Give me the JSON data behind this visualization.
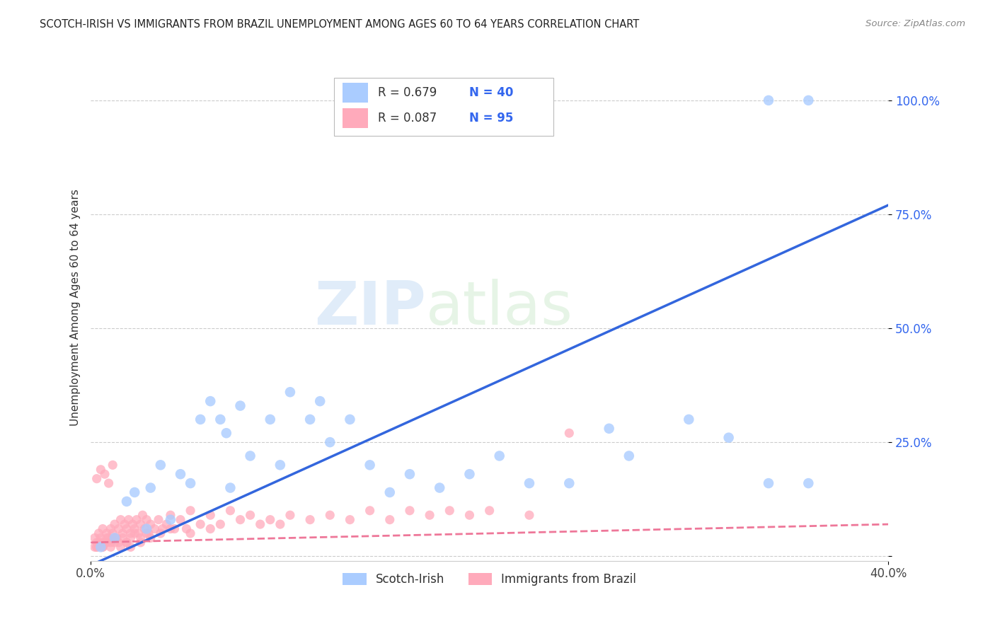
{
  "title": "SCOTCH-IRISH VS IMMIGRANTS FROM BRAZIL UNEMPLOYMENT AMONG AGES 60 TO 64 YEARS CORRELATION CHART",
  "source": "Source: ZipAtlas.com",
  "ylabel": "Unemployment Among Ages 60 to 64 years",
  "watermark_zip": "ZIP",
  "watermark_atlas": "atlas",
  "series1_name": "Scotch-Irish",
  "series1_R": "0.679",
  "series1_N": "40",
  "series1_color": "#aaccff",
  "series1_line_color": "#3366dd",
  "series2_name": "Immigrants from Brazil",
  "series2_R": "0.087",
  "series2_N": "95",
  "series2_color": "#ffaabb",
  "series2_line_color": "#ee7799",
  "R_color": "#333333",
  "N_color": "#3366ee",
  "ytick_color": "#3366ee",
  "grid_color": "#cccccc",
  "xlim": [
    0.0,
    0.4
  ],
  "ylim": [
    -0.01,
    1.1
  ],
  "si_line_x0": 0.0,
  "si_line_y0": -0.02,
  "si_line_x1": 0.4,
  "si_line_y1": 0.77,
  "br_line_x0": 0.0,
  "br_line_y0": 0.03,
  "br_line_x1": 0.4,
  "br_line_y1": 0.07,
  "scotch_irish_x": [
    0.005,
    0.012,
    0.018,
    0.022,
    0.028,
    0.03,
    0.035,
    0.04,
    0.045,
    0.05,
    0.055,
    0.06,
    0.065,
    0.068,
    0.07,
    0.075,
    0.08,
    0.09,
    0.095,
    0.1,
    0.11,
    0.115,
    0.12,
    0.13,
    0.14,
    0.15,
    0.16,
    0.175,
    0.19,
    0.205,
    0.22,
    0.24,
    0.26,
    0.27,
    0.3,
    0.32,
    0.34,
    0.36,
    0.34,
    0.36
  ],
  "scotch_irish_y": [
    0.02,
    0.04,
    0.12,
    0.14,
    0.06,
    0.15,
    0.2,
    0.08,
    0.18,
    0.16,
    0.3,
    0.34,
    0.3,
    0.27,
    0.15,
    0.33,
    0.22,
    0.3,
    0.2,
    0.36,
    0.3,
    0.34,
    0.25,
    0.3,
    0.2,
    0.14,
    0.18,
    0.15,
    0.18,
    0.22,
    0.16,
    0.16,
    0.28,
    0.22,
    0.3,
    0.26,
    0.16,
    0.16,
    1.0,
    1.0
  ],
  "brazil_x": [
    0.002,
    0.003,
    0.004,
    0.005,
    0.006,
    0.007,
    0.008,
    0.009,
    0.01,
    0.011,
    0.012,
    0.013,
    0.014,
    0.015,
    0.016,
    0.017,
    0.018,
    0.019,
    0.02,
    0.021,
    0.022,
    0.023,
    0.024,
    0.025,
    0.026,
    0.027,
    0.028,
    0.029,
    0.03,
    0.032,
    0.034,
    0.036,
    0.038,
    0.04,
    0.042,
    0.045,
    0.048,
    0.05,
    0.055,
    0.06,
    0.065,
    0.07,
    0.075,
    0.08,
    0.085,
    0.09,
    0.095,
    0.1,
    0.11,
    0.12,
    0.13,
    0.14,
    0.15,
    0.16,
    0.17,
    0.18,
    0.19,
    0.2,
    0.22,
    0.24,
    0.002,
    0.003,
    0.005,
    0.006,
    0.007,
    0.008,
    0.01,
    0.012,
    0.014,
    0.016,
    0.018,
    0.02,
    0.022,
    0.025,
    0.028,
    0.03,
    0.035,
    0.04,
    0.05,
    0.06,
    0.003,
    0.004,
    0.006,
    0.008,
    0.01,
    0.012,
    0.015,
    0.018,
    0.02,
    0.025,
    0.003,
    0.005,
    0.007,
    0.009,
    0.011
  ],
  "brazil_y": [
    0.04,
    0.03,
    0.05,
    0.04,
    0.06,
    0.03,
    0.05,
    0.04,
    0.06,
    0.05,
    0.07,
    0.04,
    0.06,
    0.08,
    0.05,
    0.07,
    0.06,
    0.08,
    0.05,
    0.07,
    0.06,
    0.08,
    0.05,
    0.07,
    0.09,
    0.06,
    0.08,
    0.05,
    0.07,
    0.06,
    0.08,
    0.06,
    0.07,
    0.09,
    0.06,
    0.08,
    0.06,
    0.1,
    0.07,
    0.09,
    0.07,
    0.1,
    0.08,
    0.09,
    0.07,
    0.08,
    0.07,
    0.09,
    0.08,
    0.09,
    0.08,
    0.1,
    0.08,
    0.1,
    0.09,
    0.1,
    0.09,
    0.1,
    0.09,
    0.27,
    0.02,
    0.02,
    0.03,
    0.02,
    0.03,
    0.04,
    0.03,
    0.04,
    0.03,
    0.04,
    0.03,
    0.04,
    0.05,
    0.04,
    0.05,
    0.04,
    0.05,
    0.06,
    0.05,
    0.06,
    0.02,
    0.03,
    0.02,
    0.03,
    0.02,
    0.03,
    0.02,
    0.03,
    0.02,
    0.03,
    0.17,
    0.19,
    0.18,
    0.16,
    0.2
  ]
}
